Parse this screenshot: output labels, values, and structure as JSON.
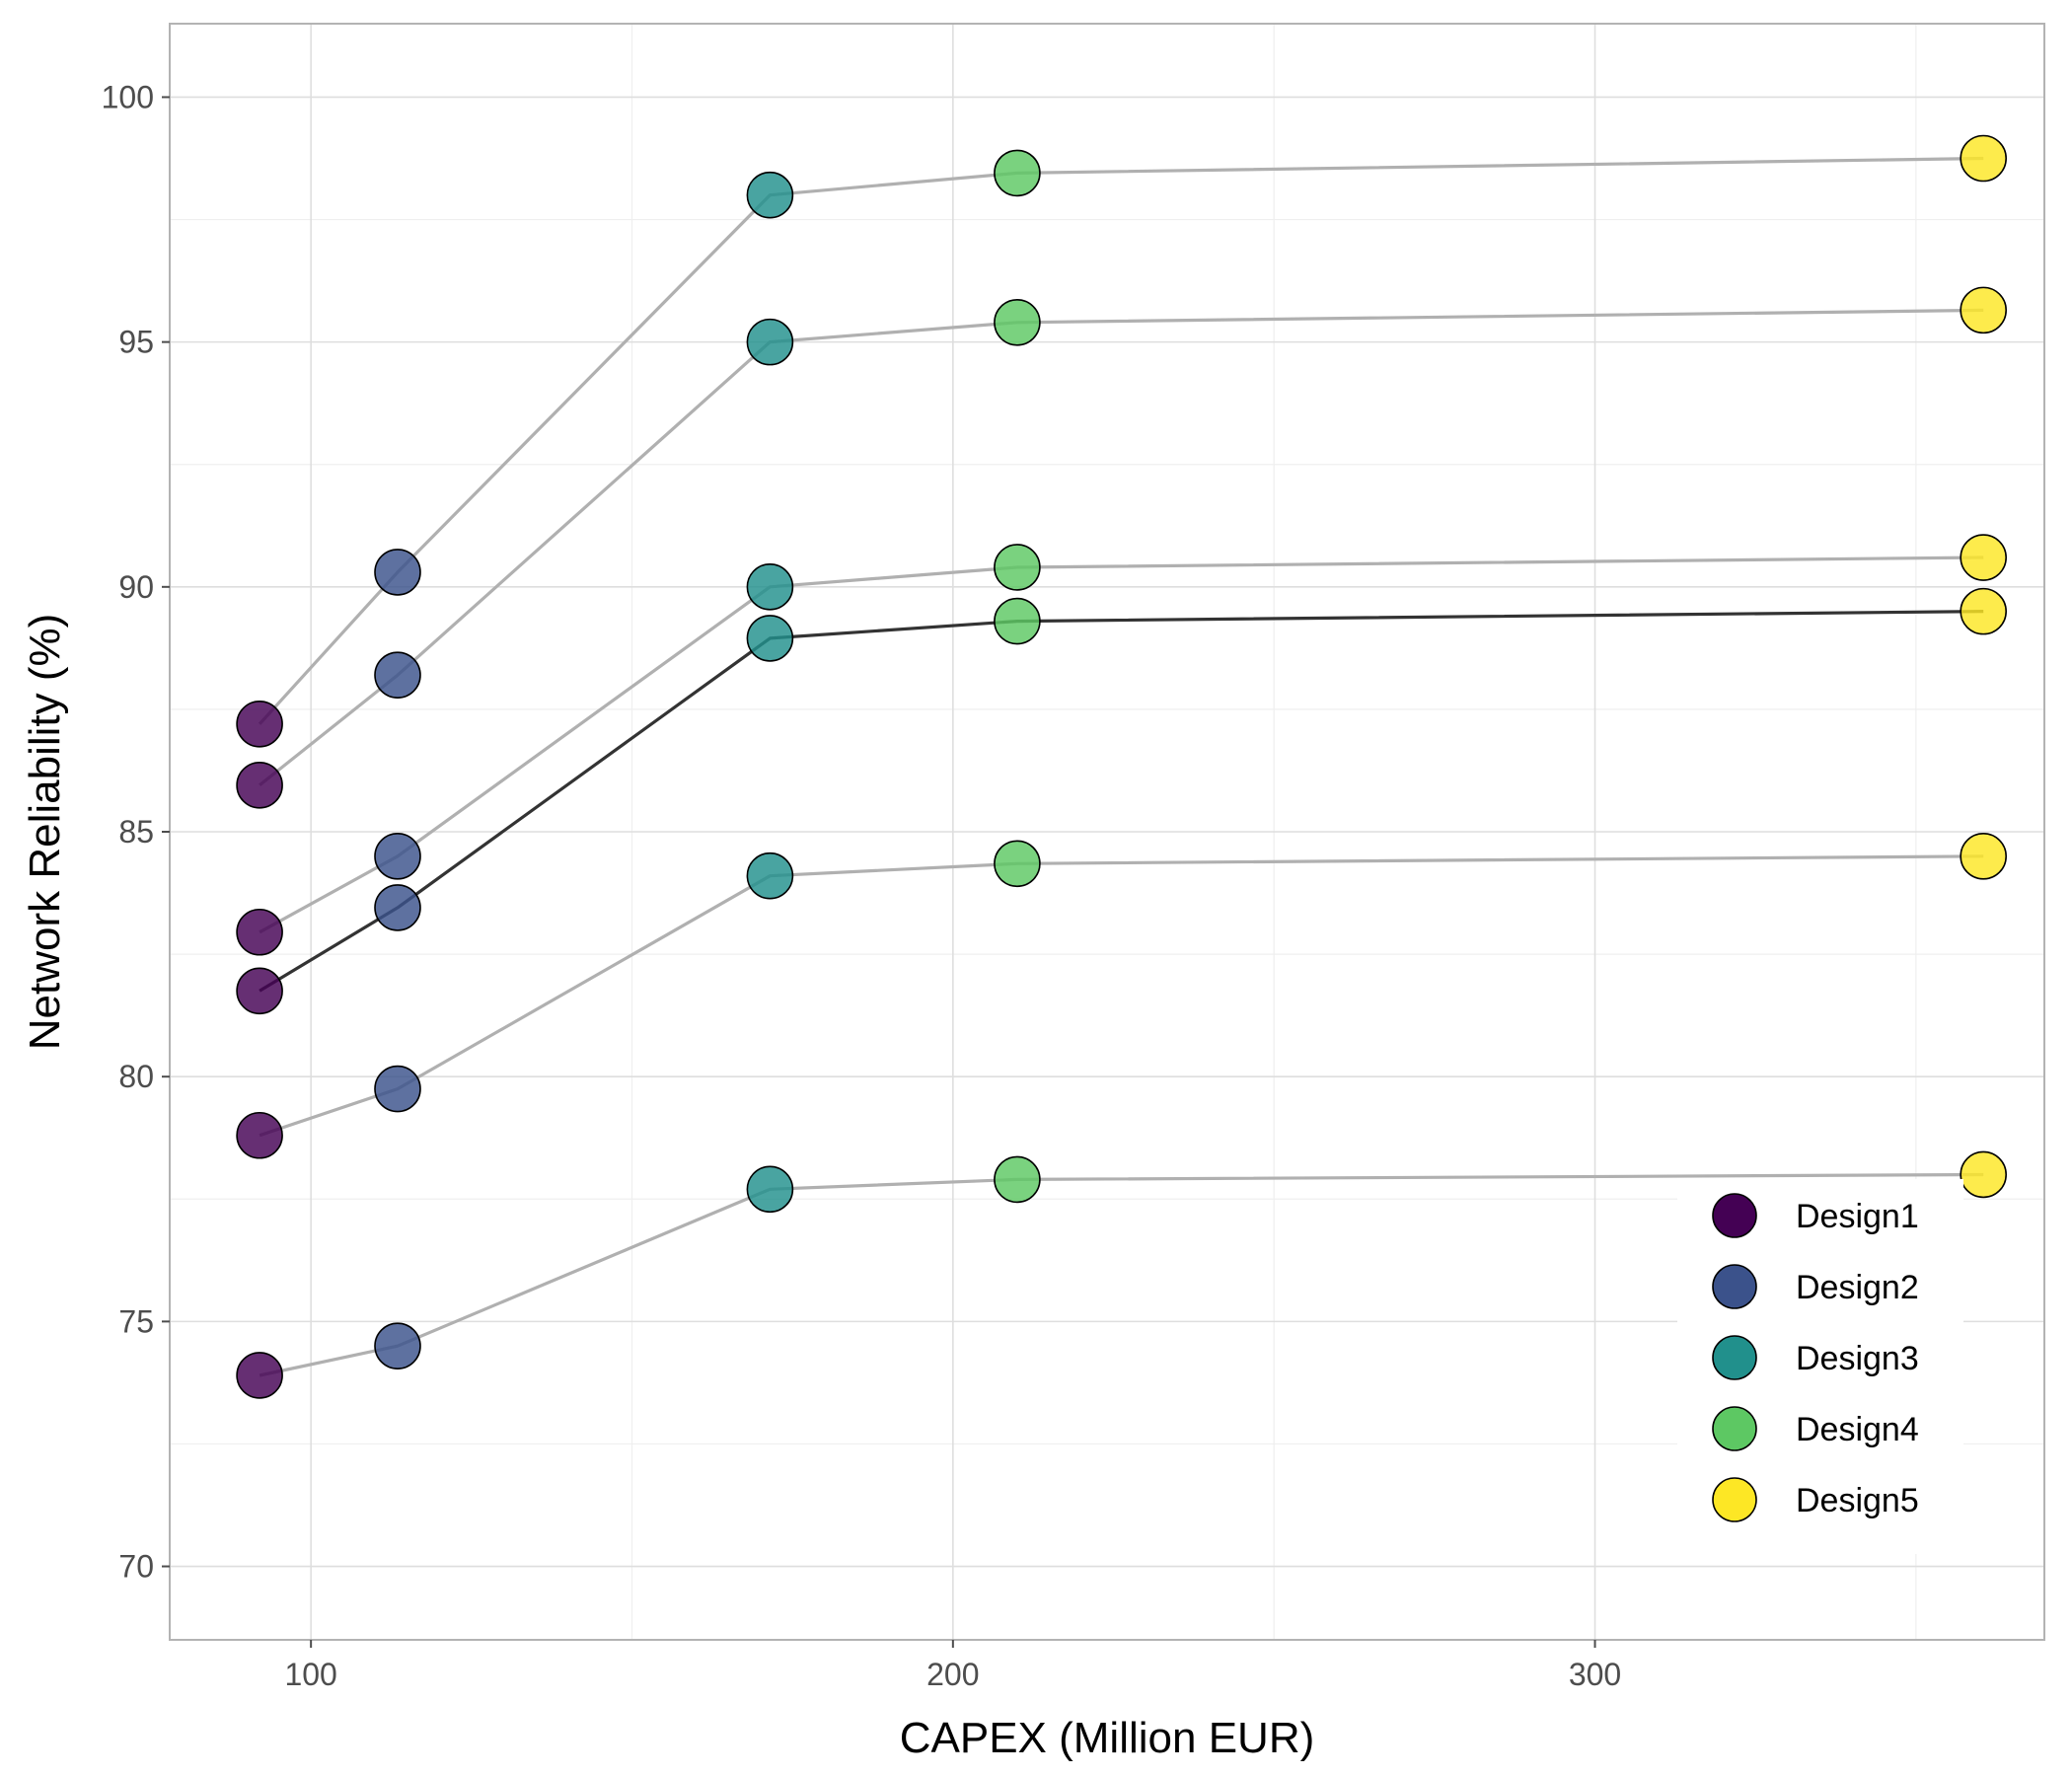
{
  "chart_data": {
    "type": "scatter",
    "title": "",
    "xlabel": "CAPEX (Million EUR)",
    "ylabel": "Network Reliability (%)",
    "xlim": [
      78,
      370
    ],
    "ylim": [
      68.5,
      101.5
    ],
    "x_ticks": [
      100,
      200,
      300
    ],
    "x_minor_ticks": [
      150,
      250,
      350
    ],
    "y_ticks": [
      70,
      75,
      80,
      85,
      90,
      95,
      100
    ],
    "y_minor_ticks": [
      72.5,
      77.5,
      82.5,
      87.5,
      92.5,
      97.5
    ],
    "grid": true,
    "legend_position": "bottom-right",
    "capex": [
      92,
      113.5,
      171.5,
      210,
      360.5
    ],
    "designs": [
      {
        "name": "Design1",
        "color": "#440154"
      },
      {
        "name": "Design2",
        "color": "#3B528B"
      },
      {
        "name": "Design3",
        "color": "#21908C"
      },
      {
        "name": "Design4",
        "color": "#5DC863"
      },
      {
        "name": "Design5",
        "color": "#FDE725"
      }
    ],
    "series": [
      {
        "values": [
          87.2,
          90.3,
          98.0,
          98.45,
          98.75
        ],
        "line_color": "#b0b0b0"
      },
      {
        "values": [
          85.95,
          88.2,
          95.0,
          95.4,
          95.65
        ],
        "line_color": "#b0b0b0"
      },
      {
        "values": [
          82.95,
          84.5,
          90.0,
          90.4,
          90.6
        ],
        "line_color": "#b0b0b0"
      },
      {
        "values": [
          81.75,
          83.45,
          88.95,
          89.3,
          89.5
        ],
        "line_color": "#333333"
      },
      {
        "values": [
          78.8,
          79.75,
          84.1,
          84.35,
          84.5
        ],
        "line_color": "#b0b0b0"
      },
      {
        "values": [
          73.9,
          74.5,
          77.7,
          77.9,
          78.0
        ],
        "line_color": "#b0b0b0"
      }
    ]
  }
}
